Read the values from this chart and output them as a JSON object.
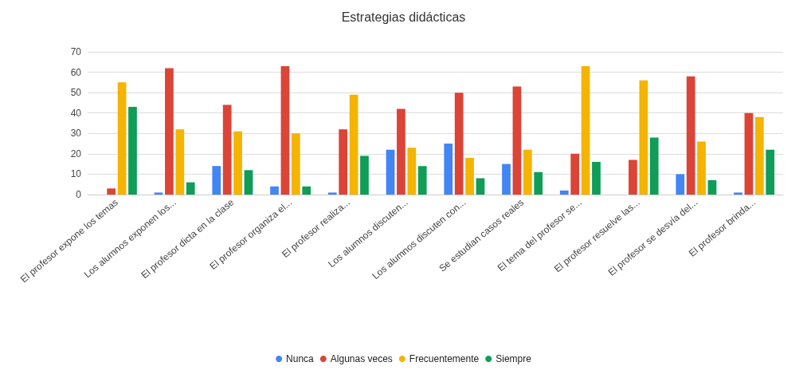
{
  "chart_data": {
    "type": "bar",
    "title": "Estrategias didácticas",
    "categories": [
      "El profesor expone los temas",
      "Los alumnos exponen los...",
      "El profesor dicta en la clase",
      "El profesor organiza el...",
      "El profesor realiza...",
      "Los alumnos discuten...",
      "Los alumnos discuten con...",
      "Se estudian casos reales",
      "El tema del profesor se...",
      "El profesor resuelve las...",
      "El profesor se desvía del...",
      "El profesor brinda..."
    ],
    "series": [
      {
        "name": "Nunca",
        "color": "#4285f4",
        "values": [
          0,
          1,
          14,
          4,
          1,
          22,
          25,
          15,
          2,
          0,
          10,
          1
        ]
      },
      {
        "name": "Algunas veces",
        "color": "#db4437",
        "values": [
          3,
          62,
          44,
          63,
          32,
          42,
          50,
          53,
          20,
          17,
          58,
          40
        ]
      },
      {
        "name": "Frecuentemente",
        "color": "#f4b400",
        "values": [
          55,
          32,
          31,
          30,
          49,
          23,
          18,
          22,
          63,
          56,
          26,
          38
        ]
      },
      {
        "name": "Siempre",
        "color": "#0f9d58",
        "values": [
          43,
          6,
          12,
          4,
          19,
          14,
          8,
          11,
          16,
          28,
          7,
          22
        ]
      }
    ],
    "ylim": [
      0,
      70
    ],
    "yticks": [
      0,
      10,
      20,
      30,
      40,
      50,
      60,
      70
    ],
    "grid": "y",
    "legend": "bottom"
  }
}
